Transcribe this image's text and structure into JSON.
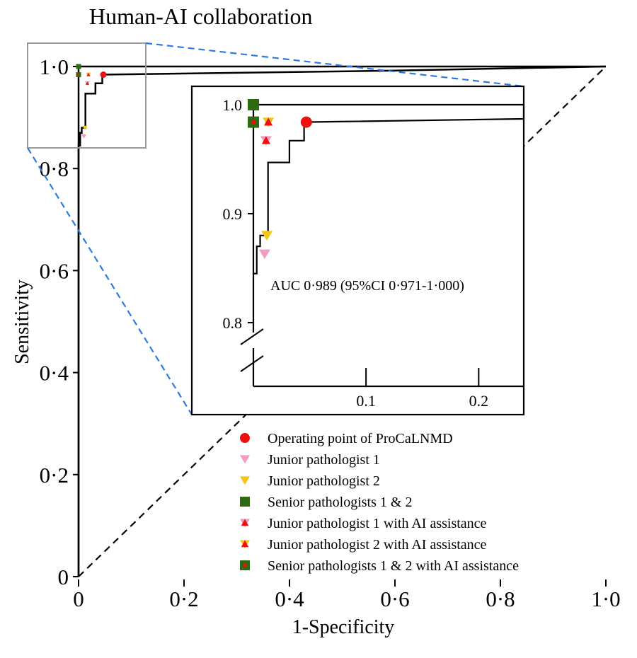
{
  "chart_data": {
    "type": "line",
    "title": "Human-AI collaboration",
    "xlabel": "1-Specificity",
    "ylabel": "Sensitivity",
    "xlim": [
      0,
      1
    ],
    "ylim": [
      0,
      1
    ],
    "x_ticks": [
      "0",
      "0·2",
      "0·4",
      "0·6",
      "0·8",
      "1·0"
    ],
    "y_ticks": [
      "0",
      "0·2",
      "0·4",
      "0·6",
      "0·8",
      "1·0"
    ],
    "roc_curve": {
      "points": [
        [
          0.0,
          0.0
        ],
        [
          0.0,
          0.845
        ],
        [
          0.003,
          0.845
        ],
        [
          0.003,
          0.87
        ],
        [
          0.006,
          0.87
        ],
        [
          0.006,
          0.88
        ],
        [
          0.013,
          0.88
        ],
        [
          0.013,
          0.947
        ],
        [
          0.032,
          0.947
        ],
        [
          0.032,
          0.967
        ],
        [
          0.045,
          0.967
        ],
        [
          0.045,
          0.984
        ],
        [
          0.25,
          0.987
        ],
        [
          0.6,
          0.992
        ],
        [
          1.0,
          1.0
        ]
      ],
      "auc_label": "AUC 0·989 (95%CI 0·971-1·000)"
    },
    "diagonal": [
      [
        0,
        0
      ],
      [
        1,
        1
      ]
    ],
    "inset": {
      "xlim": [
        0,
        0.24
      ],
      "ylim": [
        0.8,
        1.0
      ],
      "x_ticks": [
        "0.1",
        "0.2"
      ],
      "y_ticks": [
        "1.0",
        "0.9",
        "0.8"
      ]
    },
    "markers": [
      {
        "name": "Operating point of ProCaLNMD",
        "x": 0.047,
        "y": 0.984,
        "shape": "circle",
        "color": "#ee1111"
      },
      {
        "name": "Junior pathologist 1",
        "x": 0.01,
        "y": 0.863,
        "shape": "triangle-down",
        "color": "#f29ec4"
      },
      {
        "name": "Junior pathologist 2",
        "x": 0.012,
        "y": 0.88,
        "shape": "triangle-down",
        "color": "#f5c518"
      },
      {
        "name": "Senior pathologists 1 & 2",
        "x": 0.0,
        "y": 1.0,
        "shape": "square",
        "color": "#2d6a10"
      },
      {
        "name": "Junior pathologist 1 with AI assistance",
        "x": 0.01,
        "y": 0.967,
        "shape": "triangle-pair",
        "color": "#f29ec4",
        "accent": "#ee1111"
      },
      {
        "name": "Junior pathologist 2 with AI assistance",
        "x": 0.012,
        "y": 0.984,
        "shape": "triangle-pair",
        "color": "#f5c518",
        "accent": "#ee1111"
      },
      {
        "name": "Senior pathologists 1 & 2 with AI assistance",
        "x": 0.0,
        "y": 0.984,
        "shape": "square-dot",
        "color": "#2d6a10",
        "accent": "#ee1111"
      }
    ],
    "grid": false,
    "legend": "bottom-right"
  }
}
